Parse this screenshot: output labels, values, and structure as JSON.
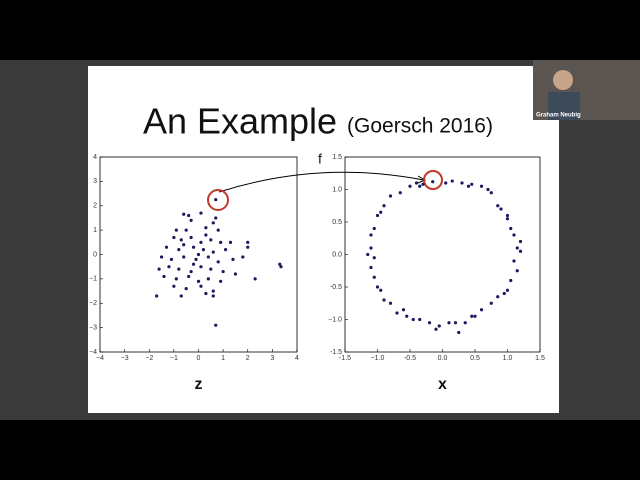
{
  "slide": {
    "title": "An Example",
    "citation": "(Goersch 2016)",
    "arrow_label": "f",
    "webcam_name": "Graham Neubig"
  },
  "chart_data": [
    {
      "type": "scatter",
      "x_label": "z",
      "color": "#1a1a5e",
      "x": [
        0.7,
        0.7,
        3.3,
        3.35,
        -1.7,
        2.3,
        2.0,
        2.0,
        -0.6,
        -0.4,
        -0.3,
        0.1,
        0.7,
        0.6,
        -0.9,
        -0.5,
        0.3,
        0.8,
        -1.0,
        -0.7,
        -0.3,
        0.1,
        0.5,
        0.9,
        1.3,
        -1.3,
        -0.8,
        -0.2,
        0.2,
        0.6,
        1.1,
        -1.5,
        -1.1,
        -0.6,
        -0.1,
        0.4,
        0.8,
        1.4,
        -1.6,
        -1.2,
        -0.8,
        -0.3,
        0.1,
        0.5,
        1.0,
        1.5,
        -1.4,
        -0.9,
        -0.4,
        0.0,
        0.4,
        0.9,
        -1.0,
        -0.5,
        0.1,
        0.6,
        -0.7,
        0.3,
        0.6,
        -0.2,
        0.3,
        -0.6,
        1.8,
        0.0
      ],
      "values": [
        2.25,
        -2.9,
        -0.4,
        -0.5,
        -1.7,
        -1.0,
        0.5,
        0.3,
        1.65,
        1.6,
        1.4,
        1.7,
        1.5,
        1.3,
        1.0,
        1.0,
        1.1,
        1.0,
        0.7,
        0.6,
        0.7,
        0.5,
        0.6,
        0.5,
        0.5,
        0.3,
        0.2,
        0.3,
        0.2,
        0.1,
        0.2,
        -0.1,
        -0.2,
        -0.1,
        -0.2,
        -0.1,
        -0.3,
        -0.2,
        -0.6,
        -0.5,
        -0.6,
        -0.7,
        -0.5,
        -0.6,
        -0.7,
        -0.8,
        -0.9,
        -1.0,
        -0.9,
        -1.1,
        -1.0,
        -1.1,
        -1.3,
        -1.4,
        -1.3,
        -1.5,
        -1.7,
        -1.6,
        -1.7,
        -0.4,
        0.8,
        0.4,
        -0.1,
        0.0
      ],
      "xlim": [
        -4,
        4
      ],
      "ylim": [
        -4,
        4
      ],
      "xticks": [
        {
          "value": -4,
          "label": "−4"
        },
        {
          "value": -3,
          "label": "−3"
        },
        {
          "value": -2,
          "label": "−2"
        },
        {
          "value": -1,
          "label": "−1"
        },
        0,
        1,
        2,
        3,
        4
      ],
      "yticks": [
        {
          "value": -4,
          "label": "−4"
        },
        {
          "value": -3,
          "label": "−3"
        },
        {
          "value": -2,
          "label": "−2"
        },
        {
          "value": -1,
          "label": "−1"
        },
        0,
        1,
        2,
        3,
        4
      ]
    },
    {
      "type": "scatter",
      "x_label": "x",
      "color": "#1a1a5e",
      "x": [
        -0.15,
        0.15,
        0.3,
        0.45,
        0.6,
        0.7,
        0.85,
        0.9,
        1.0,
        1.05,
        1.1,
        1.15,
        1.2,
        1.1,
        1.15,
        1.05,
        1.0,
        0.85,
        0.75,
        0.6,
        0.45,
        0.35,
        0.25,
        0.1,
        -0.05,
        -0.2,
        -0.35,
        -0.45,
        -0.55,
        -0.7,
        -0.8,
        -0.9,
        -1.0,
        -1.05,
        -1.1,
        -1.05,
        -1.1,
        -1.1,
        -1.05,
        -1.0,
        -0.9,
        -0.8,
        -0.65,
        -0.5,
        -0.4,
        -0.35,
        0.05,
        0.75,
        1.0,
        1.2,
        0.95,
        0.5,
        0.2,
        -0.1,
        -0.6,
        -0.95,
        -1.15,
        -0.95,
        -0.3,
        0.4
      ],
      "values": [
        1.12,
        1.13,
        1.1,
        1.08,
        1.05,
        1.0,
        0.75,
        0.7,
        0.55,
        0.4,
        0.3,
        0.1,
        0.05,
        -0.1,
        -0.25,
        -0.4,
        -0.55,
        -0.65,
        -0.75,
        -0.85,
        -0.95,
        -1.05,
        -1.2,
        -1.05,
        -1.1,
        -1.05,
        -1.0,
        -1.0,
        -0.95,
        -0.9,
        -0.75,
        -0.7,
        -0.5,
        -0.35,
        -0.2,
        -0.05,
        0.1,
        0.3,
        0.4,
        0.6,
        0.75,
        0.9,
        0.95,
        1.05,
        1.1,
        1.05,
        1.1,
        0.95,
        0.6,
        0.2,
        -0.6,
        -0.95,
        -1.05,
        -1.15,
        -0.85,
        -0.55,
        0.0,
        0.65,
        1.08,
        1.05
      ],
      "xlim": [
        -1.5,
        1.5
      ],
      "ylim": [
        -1.5,
        1.5
      ],
      "xticks": [
        -1.5,
        {
          "value": -1.0,
          "label": "−1.0"
        },
        -0.5,
        {
          "value": 0,
          "label": "0.0"
        },
        0.5,
        {
          "value": 1.0,
          "label": "1.0"
        },
        1.5
      ],
      "yticks": [
        -1.5,
        {
          "value": -1.0,
          "label": "−1.0"
        },
        -0.5,
        {
          "value": 0,
          "label": "0.0"
        },
        0.5,
        {
          "value": 1.0,
          "label": "1.0"
        },
        1.5
      ]
    }
  ]
}
